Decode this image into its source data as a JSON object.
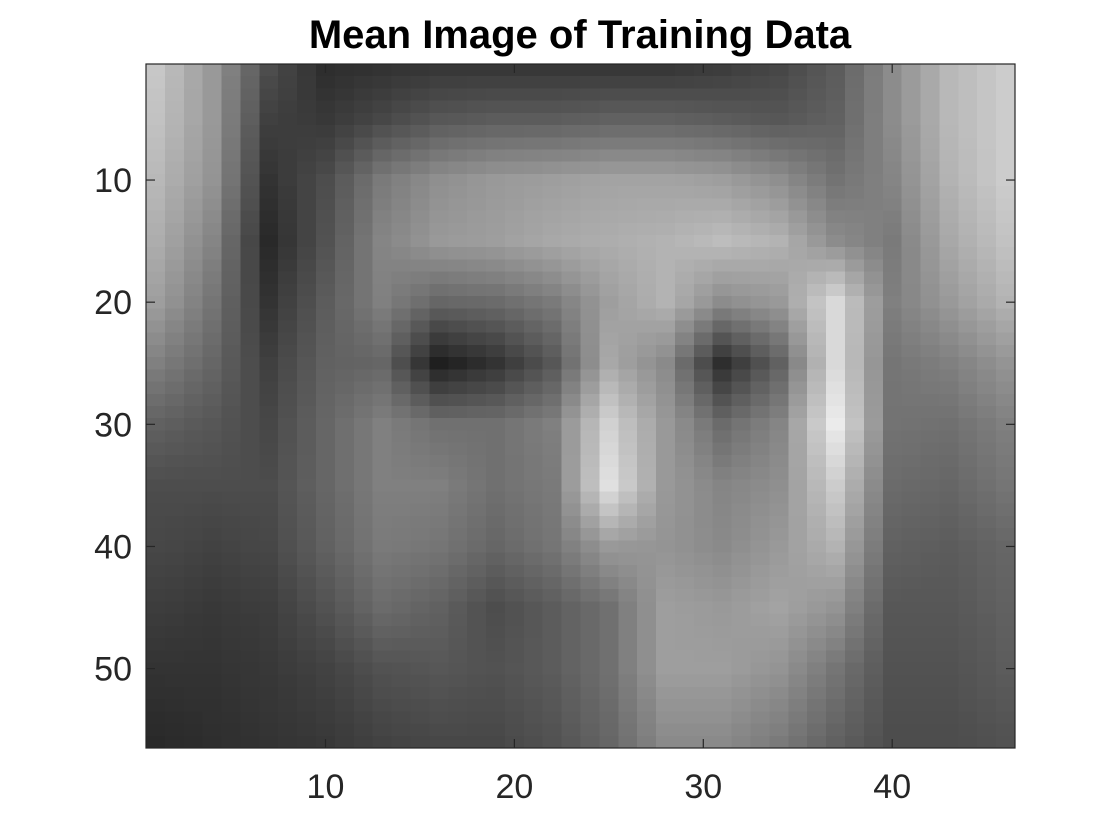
{
  "chart_data": {
    "type": "heatmap",
    "title": "Mean Image of Training Data",
    "xlabel": "",
    "ylabel": "",
    "colormap": "gray",
    "grid": false,
    "x_range": [
      0.5,
      46.5
    ],
    "y_range": [
      0.5,
      56.5
    ],
    "y_direction": "reversed",
    "x_ticks": [
      10,
      20,
      30,
      40
    ],
    "y_ticks": [
      10,
      20,
      30,
      40,
      50
    ],
    "x_tick_labels": [
      "10",
      "20",
      "30",
      "40"
    ],
    "y_tick_labels": [
      "10",
      "20",
      "30",
      "40",
      "50"
    ],
    "image_size": {
      "columns": 46,
      "rows": 56
    },
    "intensity_anchors": {
      "columns": [
        1,
        4,
        7,
        10,
        13,
        16,
        19,
        22,
        25,
        28,
        31,
        34,
        37,
        40,
        43,
        46
      ],
      "rows": [
        1,
        5,
        10,
        15,
        20,
        25,
        30,
        35,
        40,
        45,
        50,
        56
      ],
      "values": [
        [
          0.78,
          0.6,
          0.3,
          0.18,
          0.2,
          0.22,
          0.22,
          0.22,
          0.22,
          0.22,
          0.24,
          0.28,
          0.36,
          0.55,
          0.72,
          0.8
        ],
        [
          0.76,
          0.6,
          0.25,
          0.22,
          0.28,
          0.34,
          0.36,
          0.36,
          0.38,
          0.38,
          0.36,
          0.34,
          0.38,
          0.55,
          0.72,
          0.8
        ],
        [
          0.72,
          0.58,
          0.2,
          0.3,
          0.48,
          0.56,
          0.6,
          0.62,
          0.64,
          0.64,
          0.62,
          0.56,
          0.45,
          0.52,
          0.7,
          0.8
        ],
        [
          0.68,
          0.52,
          0.16,
          0.32,
          0.52,
          0.6,
          0.62,
          0.66,
          0.68,
          0.7,
          0.74,
          0.7,
          0.55,
          0.48,
          0.66,
          0.76
        ],
        [
          0.62,
          0.46,
          0.2,
          0.36,
          0.5,
          0.4,
          0.42,
          0.48,
          0.62,
          0.7,
          0.55,
          0.6,
          0.85,
          0.5,
          0.6,
          0.7
        ],
        [
          0.5,
          0.4,
          0.25,
          0.38,
          0.4,
          0.12,
          0.2,
          0.34,
          0.66,
          0.54,
          0.18,
          0.38,
          0.85,
          0.46,
          0.5,
          0.58
        ],
        [
          0.38,
          0.34,
          0.28,
          0.4,
          0.5,
          0.44,
          0.44,
          0.5,
          0.82,
          0.6,
          0.42,
          0.52,
          0.92,
          0.45,
          0.44,
          0.5
        ],
        [
          0.3,
          0.3,
          0.3,
          0.4,
          0.5,
          0.5,
          0.44,
          0.48,
          0.88,
          0.6,
          0.52,
          0.56,
          0.8,
          0.42,
          0.4,
          0.46
        ],
        [
          0.28,
          0.26,
          0.28,
          0.38,
          0.48,
          0.46,
          0.4,
          0.46,
          0.6,
          0.58,
          0.54,
          0.6,
          0.7,
          0.38,
          0.36,
          0.4
        ],
        [
          0.24,
          0.22,
          0.24,
          0.32,
          0.42,
          0.38,
          0.3,
          0.36,
          0.44,
          0.62,
          0.6,
          0.64,
          0.58,
          0.34,
          0.34,
          0.38
        ],
        [
          0.2,
          0.2,
          0.22,
          0.26,
          0.32,
          0.34,
          0.32,
          0.36,
          0.44,
          0.62,
          0.62,
          0.58,
          0.46,
          0.32,
          0.32,
          0.36
        ],
        [
          0.16,
          0.18,
          0.2,
          0.22,
          0.26,
          0.28,
          0.28,
          0.32,
          0.4,
          0.54,
          0.54,
          0.48,
          0.38,
          0.3,
          0.3,
          0.32
        ]
      ]
    }
  }
}
